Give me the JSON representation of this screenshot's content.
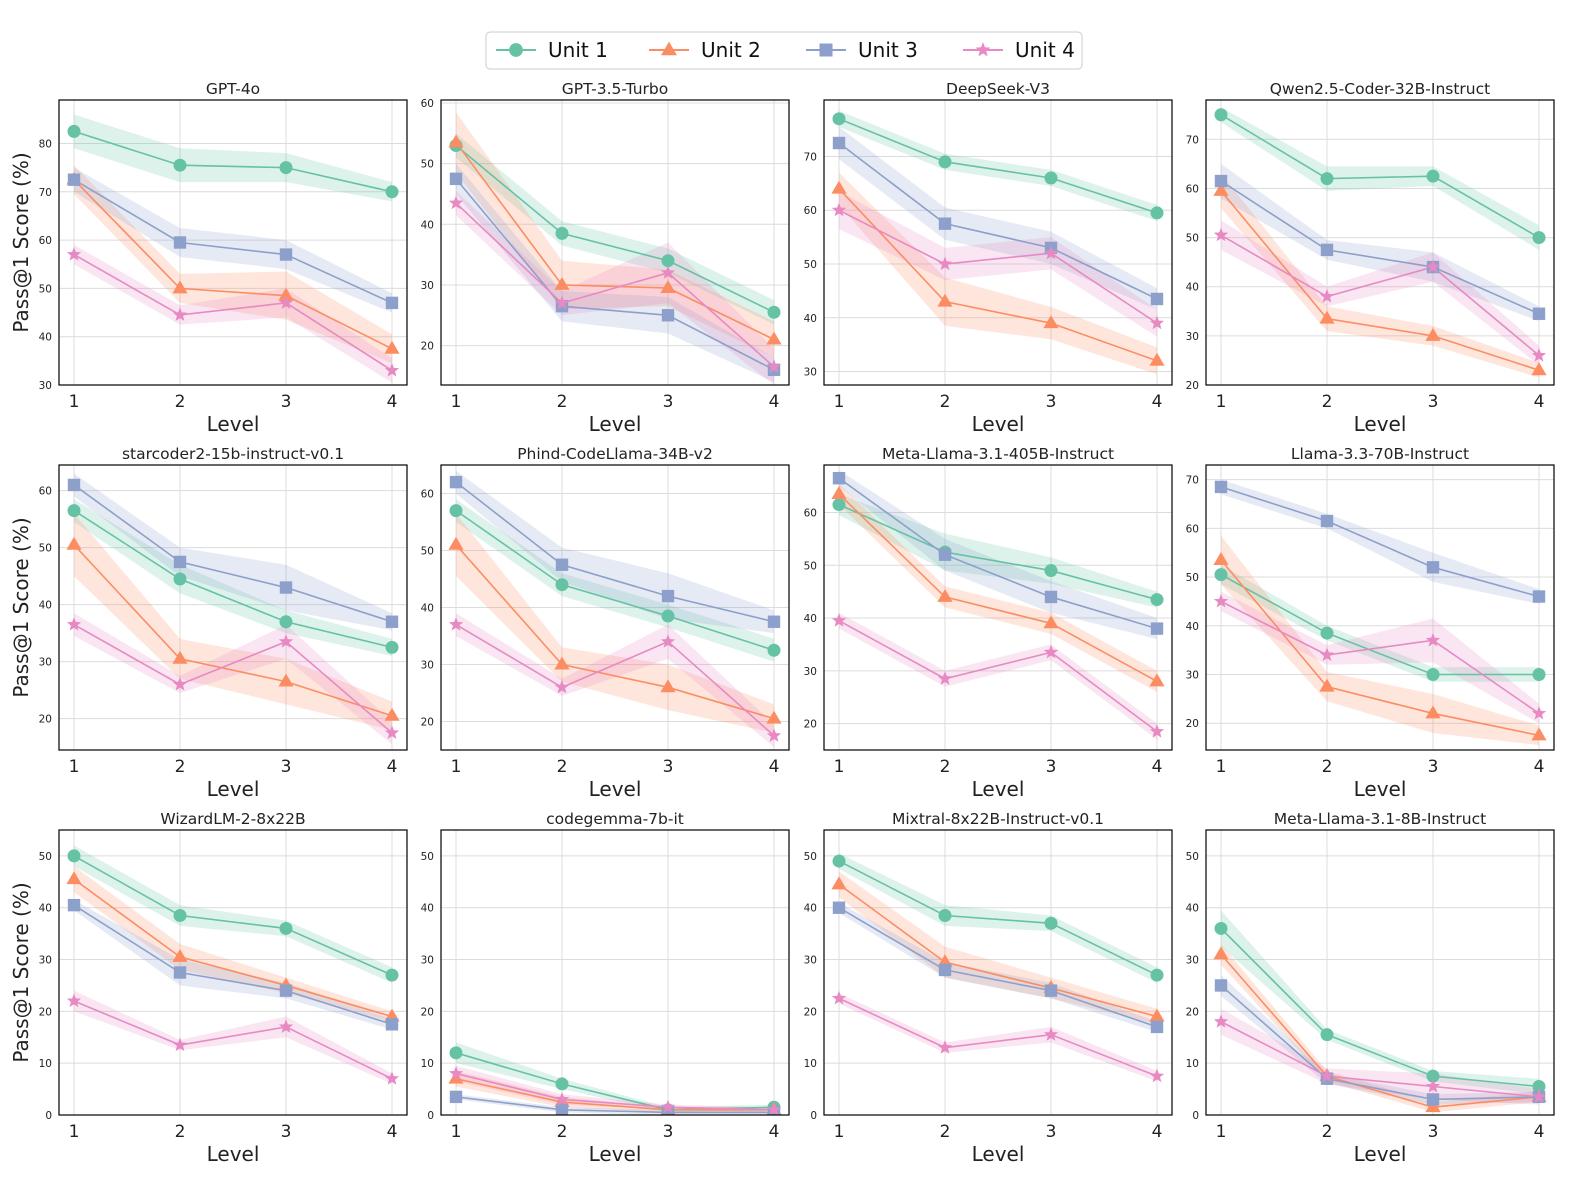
{
  "figure": {
    "ylabel": "Pass@1 Score (%)"
  },
  "legend": [
    {
      "name": "Unit 1",
      "marker": "circle",
      "color": "#66c2a5"
    },
    {
      "name": "Unit 2",
      "marker": "triangle",
      "color": "#fc8d62"
    },
    {
      "name": "Unit 3",
      "marker": "square",
      "color": "#8da0cb"
    },
    {
      "name": "Unit 4",
      "marker": "star",
      "color": "#e78ac3"
    }
  ],
  "chart_data": [
    {
      "type": "line",
      "title": "GPT-4o",
      "xlabel": "Level",
      "ylabel": "Pass@1 Score (%)",
      "x": [
        1,
        2,
        3,
        4
      ],
      "ylim": [
        30,
        89
      ],
      "yticks": [
        30,
        40,
        50,
        60,
        70,
        80
      ],
      "series": [
        {
          "name": "Unit 1",
          "values": [
            82.5,
            75.5,
            75.0,
            70.0
          ],
          "band": [
            3.5,
            3.5,
            3.0,
            2.0
          ]
        },
        {
          "name": "Unit 2",
          "values": [
            72.5,
            50.0,
            48.5,
            37.5
          ],
          "band": [
            3.0,
            3.0,
            5.0,
            3.0
          ]
        },
        {
          "name": "Unit 3",
          "values": [
            72.5,
            59.5,
            57.0,
            47.0
          ],
          "band": [
            2.5,
            3.0,
            3.0,
            2.0
          ]
        },
        {
          "name": "Unit 4",
          "values": [
            57.0,
            44.5,
            47.0,
            33.0
          ],
          "band": [
            2.0,
            2.0,
            3.0,
            2.5
          ]
        }
      ]
    },
    {
      "type": "line",
      "title": "GPT-3.5-Turbo",
      "xlabel": "Level",
      "ylabel": "",
      "x": [
        1,
        2,
        3,
        4
      ],
      "ylim": [
        13.5,
        60.5
      ],
      "yticks": [
        20,
        30,
        40,
        50,
        60
      ],
      "series": [
        {
          "name": "Unit 1",
          "values": [
            53.0,
            38.5,
            34.0,
            25.5
          ],
          "band": [
            2.0,
            2.0,
            2.0,
            2.0
          ]
        },
        {
          "name": "Unit 2",
          "values": [
            53.5,
            30.0,
            29.5,
            21.0
          ],
          "band": [
            5.0,
            4.0,
            3.0,
            3.0
          ]
        },
        {
          "name": "Unit 3",
          "values": [
            47.5,
            26.5,
            25.0,
            16.0
          ],
          "band": [
            2.5,
            2.5,
            3.0,
            2.0
          ]
        },
        {
          "name": "Unit 4",
          "values": [
            43.5,
            27.0,
            32.0,
            16.5
          ],
          "band": [
            2.0,
            2.0,
            5.0,
            3.0
          ]
        }
      ]
    },
    {
      "type": "line",
      "title": "DeepSeek-V3",
      "xlabel": "Level",
      "ylabel": "",
      "x": [
        1,
        2,
        3,
        4
      ],
      "ylim": [
        27.5,
        80.5
      ],
      "yticks": [
        30,
        40,
        50,
        60,
        70
      ],
      "series": [
        {
          "name": "Unit 1",
          "values": [
            77.0,
            69.0,
            66.0,
            59.5
          ],
          "band": [
            1.5,
            1.5,
            1.5,
            1.5
          ]
        },
        {
          "name": "Unit 2",
          "values": [
            64.0,
            43.0,
            39.0,
            32.0
          ],
          "band": [
            3.0,
            4.5,
            3.0,
            2.5
          ]
        },
        {
          "name": "Unit 3",
          "values": [
            72.5,
            57.5,
            53.0,
            43.5
          ],
          "band": [
            3.0,
            3.0,
            3.0,
            2.0
          ]
        },
        {
          "name": "Unit 4",
          "values": [
            60.0,
            50.0,
            52.0,
            39.0
          ],
          "band": [
            3.5,
            3.0,
            3.0,
            2.5
          ]
        }
      ]
    },
    {
      "type": "line",
      "title": "Qwen2.5-Coder-32B-Instruct",
      "xlabel": "Level",
      "ylabel": "",
      "x": [
        1,
        2,
        3,
        4
      ],
      "ylim": [
        20,
        78
      ],
      "yticks": [
        20,
        30,
        40,
        50,
        60,
        70
      ],
      "series": [
        {
          "name": "Unit 1",
          "values": [
            75.0,
            62.0,
            62.5,
            50.0
          ],
          "band": [
            1.5,
            2.5,
            2.0,
            2.5
          ]
        },
        {
          "name": "Unit 2",
          "values": [
            59.5,
            33.5,
            30.0,
            23.0
          ],
          "band": [
            3.5,
            2.5,
            2.0,
            1.5
          ]
        },
        {
          "name": "Unit 3",
          "values": [
            61.5,
            47.5,
            44.0,
            34.5
          ],
          "band": [
            3.5,
            2.0,
            3.0,
            1.5
          ]
        },
        {
          "name": "Unit 4",
          "values": [
            50.5,
            38.0,
            44.0,
            26.0
          ],
          "band": [
            3.0,
            2.0,
            3.0,
            2.0
          ]
        }
      ]
    },
    {
      "type": "line",
      "title": "starcoder2-15b-instruct-v0.1",
      "xlabel": "Level",
      "ylabel": "Pass@1 Score (%)",
      "x": [
        1,
        2,
        3,
        4
      ],
      "ylim": [
        14.5,
        64.5
      ],
      "yticks": [
        20,
        30,
        40,
        50,
        60
      ],
      "series": [
        {
          "name": "Unit 1",
          "values": [
            56.5,
            44.5,
            37.0,
            32.5
          ],
          "band": [
            2.0,
            2.5,
            2.0,
            1.5
          ]
        },
        {
          "name": "Unit 2",
          "values": [
            50.5,
            30.5,
            26.5,
            20.5
          ],
          "band": [
            5.5,
            3.5,
            4.0,
            2.5
          ]
        },
        {
          "name": "Unit 3",
          "values": [
            61.0,
            47.5,
            43.0,
            37.0
          ],
          "band": [
            2.0,
            2.5,
            4.0,
            1.5
          ]
        },
        {
          "name": "Unit 4",
          "values": [
            36.5,
            26.0,
            33.5,
            17.5
          ],
          "band": [
            2.0,
            1.5,
            3.0,
            2.0
          ]
        }
      ]
    },
    {
      "type": "line",
      "title": "Phind-CodeLlama-34B-v2",
      "xlabel": "Level",
      "ylabel": "",
      "x": [
        1,
        2,
        3,
        4
      ],
      "ylim": [
        15,
        65
      ],
      "yticks": [
        20,
        30,
        40,
        50,
        60
      ],
      "series": [
        {
          "name": "Unit 1",
          "values": [
            57.0,
            44.0,
            38.5,
            32.5
          ],
          "band": [
            2.0,
            2.0,
            2.0,
            2.0
          ]
        },
        {
          "name": "Unit 2",
          "values": [
            51.0,
            30.0,
            26.0,
            20.5
          ],
          "band": [
            5.5,
            3.0,
            4.0,
            2.5
          ]
        },
        {
          "name": "Unit 3",
          "values": [
            62.0,
            47.5,
            42.0,
            37.5
          ],
          "band": [
            2.0,
            3.0,
            4.0,
            2.0
          ]
        },
        {
          "name": "Unit 4",
          "values": [
            37.0,
            26.0,
            34.0,
            17.5
          ],
          "band": [
            2.0,
            1.5,
            3.0,
            2.0
          ]
        }
      ]
    },
    {
      "type": "line",
      "title": "Meta-Llama-3.1-405B-Instruct",
      "xlabel": "Level",
      "ylabel": "",
      "x": [
        1,
        2,
        3,
        4
      ],
      "ylim": [
        15,
        69
      ],
      "yticks": [
        20,
        30,
        40,
        50,
        60
      ],
      "series": [
        {
          "name": "Unit 1",
          "values": [
            61.5,
            52.5,
            49.0,
            43.5
          ],
          "band": [
            2.0,
            3.5,
            2.5,
            1.5
          ]
        },
        {
          "name": "Unit 2",
          "values": [
            63.5,
            44.0,
            39.0,
            28.0
          ],
          "band": [
            2.0,
            2.0,
            2.0,
            2.0
          ]
        },
        {
          "name": "Unit 3",
          "values": [
            66.5,
            52.0,
            44.0,
            38.0
          ],
          "band": [
            1.5,
            3.0,
            3.0,
            2.0
          ]
        },
        {
          "name": "Unit 4",
          "values": [
            39.5,
            28.5,
            33.5,
            18.5
          ],
          "band": [
            1.5,
            1.5,
            1.5,
            1.5
          ]
        }
      ]
    },
    {
      "type": "line",
      "title": "Llama-3.3-70B-Instruct",
      "xlabel": "Level",
      "ylabel": "",
      "x": [
        1,
        2,
        3,
        4
      ],
      "ylim": [
        14.5,
        73
      ],
      "yticks": [
        20,
        30,
        40,
        50,
        60,
        70
      ],
      "series": [
        {
          "name": "Unit 1",
          "values": [
            50.5,
            38.5,
            30.0,
            30.0
          ],
          "band": [
            2.0,
            1.5,
            1.5,
            1.5
          ]
        },
        {
          "name": "Unit 2",
          "values": [
            53.5,
            27.5,
            22.0,
            17.5
          ],
          "band": [
            5.0,
            3.0,
            4.0,
            2.0
          ]
        },
        {
          "name": "Unit 3",
          "values": [
            68.5,
            61.5,
            52.0,
            46.0
          ],
          "band": [
            1.5,
            1.5,
            3.0,
            1.5
          ]
        },
        {
          "name": "Unit 4",
          "values": [
            45.0,
            34.0,
            37.0,
            22.0
          ],
          "band": [
            2.0,
            2.0,
            4.5,
            2.0
          ]
        }
      ]
    },
    {
      "type": "line",
      "title": "WizardLM-2-8x22B",
      "xlabel": "Level",
      "ylabel": "Pass@1 Score (%)",
      "x": [
        1,
        2,
        3,
        4
      ],
      "ylim": [
        0,
        55
      ],
      "yticks": [
        0,
        10,
        20,
        30,
        40,
        50
      ],
      "series": [
        {
          "name": "Unit 1",
          "values": [
            50.0,
            38.5,
            36.0,
            27.0
          ],
          "band": [
            2.0,
            2.0,
            1.5,
            1.5
          ]
        },
        {
          "name": "Unit 2",
          "values": [
            45.5,
            30.5,
            25.0,
            19.0
          ],
          "band": [
            2.5,
            2.5,
            1.5,
            1.0
          ]
        },
        {
          "name": "Unit 3",
          "values": [
            40.5,
            27.5,
            24.0,
            17.5
          ],
          "band": [
            1.0,
            2.5,
            1.5,
            1.0
          ]
        },
        {
          "name": "Unit 4",
          "values": [
            22.0,
            13.5,
            17.0,
            7.0
          ],
          "band": [
            2.0,
            1.0,
            2.0,
            1.0
          ]
        }
      ]
    },
    {
      "type": "line",
      "title": "codegemma-7b-it",
      "xlabel": "Level",
      "ylabel": "",
      "x": [
        1,
        2,
        3,
        4
      ],
      "ylim": [
        0,
        55
      ],
      "yticks": [
        0,
        10,
        20,
        30,
        40,
        50
      ],
      "series": [
        {
          "name": "Unit 1",
          "values": [
            12.0,
            6.0,
            1.0,
            1.5
          ],
          "band": [
            2.0,
            1.0,
            0.5,
            0.5
          ]
        },
        {
          "name": "Unit 2",
          "values": [
            7.0,
            2.5,
            1.0,
            1.0
          ],
          "band": [
            1.5,
            1.0,
            0.5,
            0.5
          ]
        },
        {
          "name": "Unit 3",
          "values": [
            3.5,
            1.0,
            0.5,
            0.5
          ],
          "band": [
            0.5,
            0.5,
            0.5,
            0.5
          ]
        },
        {
          "name": "Unit 4",
          "values": [
            8.0,
            3.0,
            1.5,
            1.0
          ],
          "band": [
            1.5,
            1.0,
            0.5,
            0.5
          ]
        }
      ]
    },
    {
      "type": "line",
      "title": "Mixtral-8x22B-Instruct-v0.1",
      "xlabel": "Level",
      "ylabel": "",
      "x": [
        1,
        2,
        3,
        4
      ],
      "ylim": [
        0,
        55
      ],
      "yticks": [
        0,
        10,
        20,
        30,
        40,
        50
      ],
      "series": [
        {
          "name": "Unit 1",
          "values": [
            49.0,
            38.5,
            37.0,
            27.0
          ],
          "band": [
            1.5,
            2.0,
            1.5,
            1.5
          ]
        },
        {
          "name": "Unit 2",
          "values": [
            44.5,
            29.5,
            24.5,
            19.0
          ],
          "band": [
            2.5,
            3.0,
            2.0,
            1.5
          ]
        },
        {
          "name": "Unit 3",
          "values": [
            40.0,
            28.0,
            24.0,
            17.0
          ],
          "band": [
            1.0,
            1.5,
            1.5,
            1.0
          ]
        },
        {
          "name": "Unit 4",
          "values": [
            22.5,
            13.0,
            15.5,
            7.5
          ],
          "band": [
            1.0,
            1.0,
            1.5,
            1.0
          ]
        }
      ]
    },
    {
      "type": "line",
      "title": "Meta-Llama-3.1-8B-Instruct",
      "xlabel": "Level",
      "ylabel": "",
      "x": [
        1,
        2,
        3,
        4
      ],
      "ylim": [
        0,
        55
      ],
      "yticks": [
        0,
        10,
        20,
        30,
        40,
        50
      ],
      "series": [
        {
          "name": "Unit 1",
          "values": [
            36.0,
            15.5,
            7.5,
            5.5
          ],
          "band": [
            3.5,
            1.0,
            1.0,
            1.5
          ]
        },
        {
          "name": "Unit 2",
          "values": [
            31.0,
            7.5,
            1.5,
            3.5
          ],
          "band": [
            2.0,
            1.0,
            1.0,
            1.0
          ]
        },
        {
          "name": "Unit 3",
          "values": [
            25.0,
            7.0,
            3.0,
            3.5
          ],
          "band": [
            2.0,
            1.0,
            1.0,
            1.0
          ]
        },
        {
          "name": "Unit 4",
          "values": [
            18.0,
            7.5,
            5.5,
            3.5
          ],
          "band": [
            2.5,
            1.5,
            2.5,
            1.5
          ]
        }
      ]
    }
  ]
}
